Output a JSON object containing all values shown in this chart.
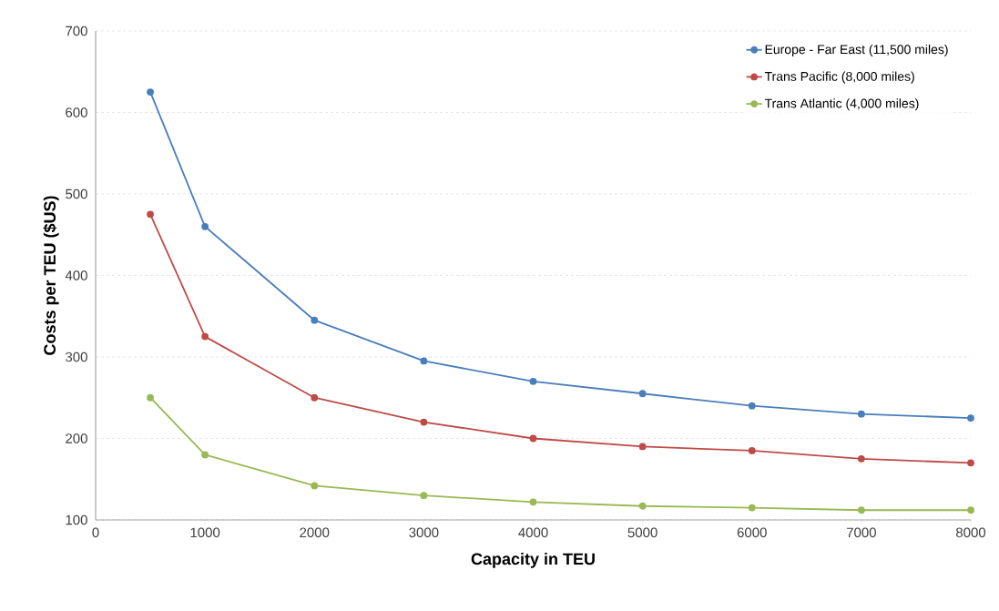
{
  "chart_data": {
    "type": "line",
    "xlabel": "Capacity in TEU",
    "ylabel": "Costs per TEU ($US)",
    "x": [
      500,
      1000,
      2000,
      3000,
      4000,
      5000,
      6000,
      7000,
      8000
    ],
    "series": [
      {
        "name": "Europe - Far East (11,500 miles)",
        "color": "#4a7ebb",
        "values": [
          625,
          460,
          345,
          295,
          270,
          255,
          240,
          230,
          225
        ]
      },
      {
        "name": "Trans Pacific (8,000 miles)",
        "color": "#be4b48",
        "values": [
          475,
          325,
          250,
          220,
          200,
          190,
          185,
          175,
          170
        ]
      },
      {
        "name": "Trans Atlantic (4,000 miles)",
        "color": "#98b954",
        "values": [
          250,
          180,
          142,
          130,
          122,
          117,
          115,
          112,
          112
        ]
      }
    ],
    "xlim": [
      0,
      8000
    ],
    "xticks": [
      0,
      1000,
      2000,
      3000,
      4000,
      5000,
      6000,
      7000,
      8000
    ],
    "ylim": [
      100,
      700
    ],
    "yticks": [
      100,
      200,
      300,
      400,
      500,
      600,
      700
    ],
    "grid": "y",
    "legend": "top right",
    "marker": "circle",
    "line_style": "solid"
  }
}
